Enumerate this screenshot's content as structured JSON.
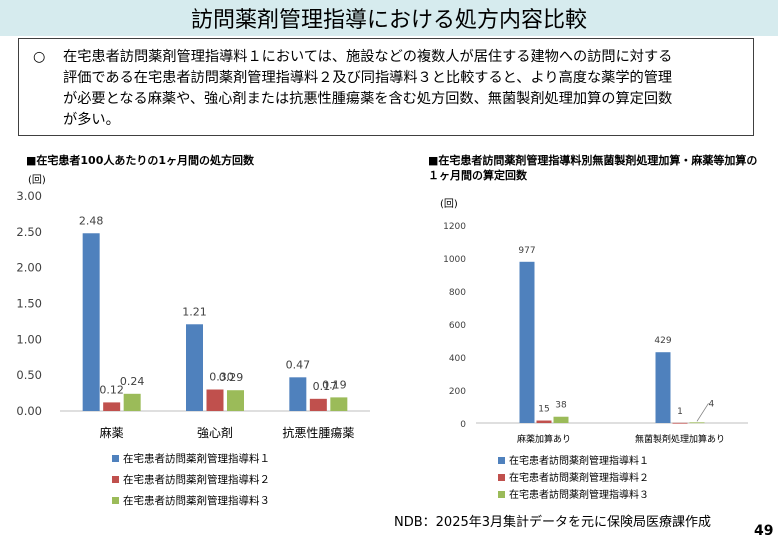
{
  "title": "訪問薬剤管理指導における処方内容比較",
  "summary": {
    "bullet": "○",
    "lines": [
      "在宅患者訪問薬剤管理指導料１においては、施設などの複数人が居住する建物への訪問に対する",
      "評価である在宅患者訪問薬剤管理指導料２及び同指導料３と比較すると、より高度な薬学的管理",
      "が必要となる麻薬や、強心剤または抗悪性腫瘍薬を含む処方回数、無菌製剤処理加算の算定回数",
      "が多い。"
    ]
  },
  "colors": {
    "series1": "#4f81bd",
    "series2": "#c0504d",
    "series3": "#9bbb59",
    "title_bg": "#d6ebee",
    "grid": "#d9d9d9",
    "axis": "#bfbfbf"
  },
  "chart_data": [
    {
      "type": "bar",
      "title": "■在宅患者100人あたりの1ヶ月間の処方回数",
      "ylabel": "(回)",
      "ylim": [
        0,
        3
      ],
      "yticks": [
        "0.00",
        "0.50",
        "1.00",
        "1.50",
        "2.00",
        "2.50",
        "3.00"
      ],
      "grid": false,
      "legend": "bottom",
      "categories": [
        "麻薬",
        "強心剤",
        "抗悪性腫瘍薬"
      ],
      "series": [
        {
          "name": "在宅患者訪問薬剤管理指導料１",
          "values": [
            2.48,
            1.21,
            0.47
          ],
          "labels": [
            "2.48",
            "1.21",
            "0.47"
          ]
        },
        {
          "name": "在宅患者訪問薬剤管理指導料２",
          "values": [
            0.12,
            0.3,
            0.17
          ],
          "labels": [
            "0.12",
            "0.30",
            "0.17"
          ]
        },
        {
          "name": "在宅患者訪問薬剤管理指導料３",
          "values": [
            0.24,
            0.29,
            0.19
          ],
          "labels": [
            "0.24",
            "0.29",
            "0.19"
          ]
        }
      ]
    },
    {
      "type": "bar",
      "title": "■在宅患者訪問薬剤管理指導料別無菌製剤処理加算・麻薬等加算の１ヶ月間の算定回数",
      "ylabel": "(回)",
      "ylim": [
        0,
        1200
      ],
      "yticks": [
        "0",
        "200",
        "400",
        "600",
        "800",
        "1000",
        "1200"
      ],
      "grid": false,
      "legend": "bottom",
      "categories": [
        "麻薬加算あり",
        "無菌製剤処理加算あり"
      ],
      "series": [
        {
          "name": "在宅患者訪問薬剤管理指導料１",
          "values": [
            977,
            429
          ],
          "labels": [
            "977",
            "429"
          ]
        },
        {
          "name": "在宅患者訪問薬剤管理指導料２",
          "values": [
            15,
            1
          ],
          "labels": [
            "15",
            "1"
          ]
        },
        {
          "name": "在宅患者訪問薬剤管理指導料３",
          "values": [
            38,
            4
          ],
          "labels": [
            "38",
            "4"
          ]
        }
      ]
    }
  ],
  "source": "NDB：2025年3月集計データを元に保険局医療課作成",
  "page_number": "49"
}
